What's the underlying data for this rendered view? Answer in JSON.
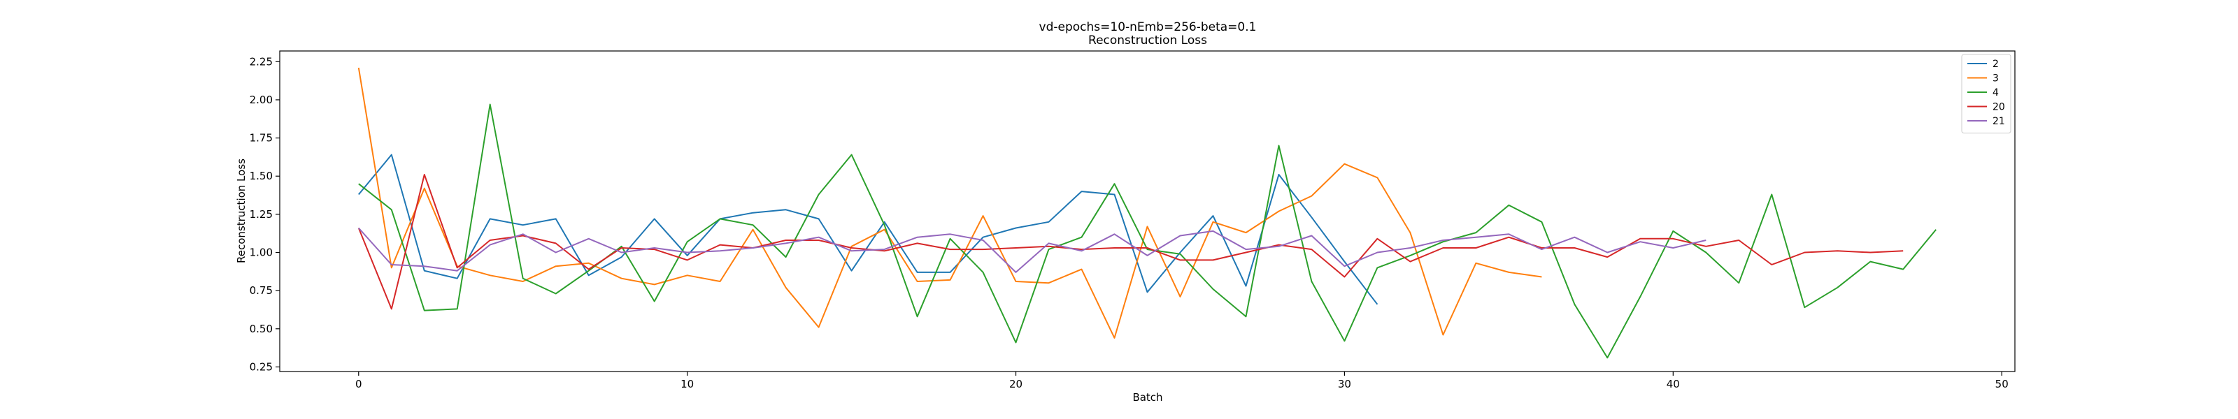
{
  "chart_data": {
    "type": "line",
    "title": "vd-epochs=10-nEmb=256-beta=0.1",
    "subtitle": "Reconstruction Loss",
    "xlabel": "Batch",
    "ylabel": "Reconstruction Loss",
    "xlim": [
      -2.4,
      50.4
    ],
    "ylim": [
      0.22,
      2.32
    ],
    "xticks": [
      0,
      10,
      20,
      30,
      40,
      50
    ],
    "xtick_labels": [
      "0",
      "10",
      "20",
      "30",
      "40",
      "50"
    ],
    "yticks": [
      0.25,
      0.5,
      0.75,
      1.0,
      1.25,
      1.5,
      1.75,
      2.0,
      2.25
    ],
    "ytick_labels": [
      "0.25",
      "0.50",
      "0.75",
      "1.00",
      "1.25",
      "1.50",
      "1.75",
      "2.00",
      "2.25"
    ],
    "grid": false,
    "legend_position": "top-right",
    "series": [
      {
        "name": "2",
        "color": "#1f77b4",
        "y": [
          1.38,
          1.64,
          0.88,
          0.83,
          1.22,
          1.18,
          1.22,
          0.85,
          0.97,
          1.22,
          0.98,
          1.22,
          1.26,
          1.28,
          1.22,
          0.88,
          1.2,
          0.87,
          0.87,
          1.1,
          1.16,
          1.2,
          1.4,
          1.38,
          0.74,
          1.0,
          1.24,
          0.78,
          1.51,
          1.23,
          0.94,
          0.66
        ]
      },
      {
        "name": "3",
        "color": "#ff7f0e",
        "y": [
          2.21,
          0.9,
          1.42,
          0.91,
          0.85,
          0.81,
          0.91,
          0.93,
          0.83,
          0.79,
          0.85,
          0.81,
          1.15,
          0.77,
          0.51,
          1.04,
          1.15,
          0.81,
          0.82,
          1.24,
          0.81,
          0.8,
          0.89,
          0.44,
          1.17,
          0.71,
          1.2,
          1.13,
          1.27,
          1.37,
          1.58,
          1.49,
          1.13,
          0.46,
          0.93,
          0.87,
          0.84
        ]
      },
      {
        "name": "4",
        "color": "#2ca02c",
        "y": [
          1.45,
          1.28,
          0.62,
          0.63,
          1.97,
          0.83,
          0.73,
          0.88,
          1.04,
          0.68,
          1.07,
          1.22,
          1.18,
          0.97,
          1.38,
          1.64,
          1.18,
          0.58,
          1.09,
          0.87,
          0.41,
          1.02,
          1.1,
          1.45,
          1.02,
          0.99,
          0.76,
          0.58,
          1.7,
          0.81,
          0.42,
          0.9,
          0.98,
          1.07,
          1.13,
          1.31,
          1.2,
          0.66,
          0.31,
          0.71,
          1.14,
          1.0,
          0.8,
          1.38,
          0.64,
          0.77,
          0.94,
          0.89,
          1.15
        ]
      },
      {
        "name": "20",
        "color": "#d62728",
        "y": [
          1.16,
          0.63,
          1.51,
          0.9,
          1.08,
          1.11,
          1.06,
          0.89,
          1.03,
          1.02,
          0.95,
          1.05,
          1.03,
          1.08,
          1.08,
          1.03,
          1.01,
          1.06,
          1.02,
          1.02,
          1.03,
          1.04,
          1.02,
          1.03,
          1.03,
          0.95,
          0.95,
          1.0,
          1.05,
          1.02,
          0.84,
          1.09,
          0.94,
          1.03,
          1.03,
          1.1,
          1.03,
          1.03,
          0.97,
          1.09,
          1.09,
          1.04,
          1.08,
          0.92,
          1.0,
          1.01,
          1.0,
          1.01
        ]
      },
      {
        "name": "21",
        "color": "#9467bd",
        "y": [
          1.16,
          0.92,
          0.91,
          0.88,
          1.05,
          1.12,
          1.0,
          1.09,
          1.0,
          1.03,
          1.0,
          1.01,
          1.03,
          1.06,
          1.1,
          1.01,
          1.02,
          1.1,
          1.12,
          1.08,
          0.87,
          1.06,
          1.01,
          1.12,
          0.98,
          1.11,
          1.14,
          1.02,
          1.04,
          1.11,
          0.91,
          1.0,
          1.03,
          1.08,
          1.1,
          1.12,
          1.02,
          1.1,
          1.0,
          1.07,
          1.03,
          1.08
        ]
      }
    ]
  }
}
